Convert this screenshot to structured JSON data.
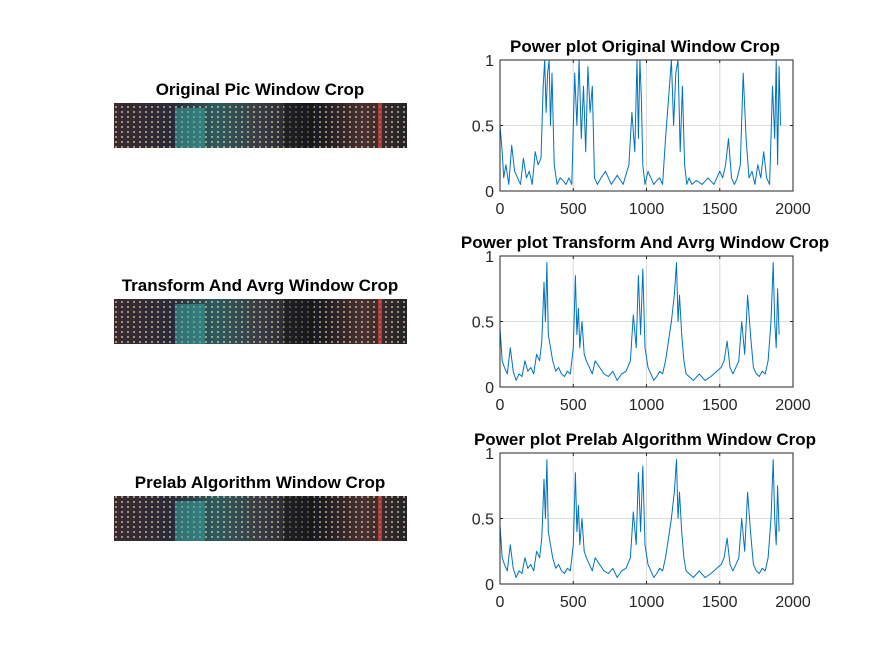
{
  "figure": {
    "image_panels": [
      {
        "title": "Original Pic Window Crop"
      },
      {
        "title": "Transform And Avrg Window Crop"
      },
      {
        "title": "Prelab Algorithm Window Crop"
      }
    ]
  },
  "colors": {
    "line": "#0072BD",
    "axis": "#262626",
    "grid": "#dcdcdc"
  },
  "chart_data": [
    {
      "type": "line",
      "title": "Power plot Original Window Crop",
      "xlabel": "",
      "ylabel": "",
      "xlim": [
        0,
        2000
      ],
      "ylim": [
        0,
        1
      ],
      "xticks": [
        0,
        500,
        1000,
        1500,
        2000
      ],
      "yticks": [
        0,
        0.5,
        1
      ],
      "yticklabels": [
        "0",
        "0.5",
        "1"
      ],
      "grid": true,
      "series": [
        {
          "x": [
            0,
            15,
            25,
            40,
            60,
            80,
            100,
            120,
            140,
            160,
            180,
            200,
            220,
            240,
            260,
            280,
            295,
            305,
            315,
            325,
            335,
            345,
            355,
            370,
            390,
            410,
            430,
            450,
            470,
            490,
            510,
            525,
            540,
            555,
            570,
            585,
            600,
            615,
            630,
            645,
            665,
            690,
            720,
            760,
            800,
            840,
            880,
            900,
            920,
            935,
            945,
            955,
            965,
            975,
            990,
            1010,
            1030,
            1050,
            1070,
            1090,
            1110,
            1130,
            1150,
            1170,
            1185,
            1200,
            1215,
            1230,
            1245,
            1260,
            1275,
            1290,
            1310,
            1340,
            1380,
            1420,
            1460,
            1500,
            1520,
            1540,
            1560,
            1580,
            1600,
            1620,
            1640,
            1660,
            1680,
            1700,
            1720,
            1740,
            1760,
            1780,
            1800,
            1820,
            1840,
            1860,
            1875,
            1885,
            1895,
            1905,
            1915
          ],
          "y": [
            0.5,
            0.3,
            0.1,
            0.2,
            0.05,
            0.35,
            0.15,
            0.1,
            0.05,
            0.25,
            0.1,
            0.15,
            0.05,
            0.3,
            0.2,
            0.25,
            0.8,
            1,
            0.6,
            0.9,
            1,
            0.5,
            0.9,
            0.2,
            0.05,
            0.1,
            0.08,
            0.05,
            0.1,
            0.05,
            0.9,
            0.5,
            1,
            0.4,
            0.8,
            0.3,
            0.95,
            0.6,
            0.8,
            0.1,
            0.05,
            0.1,
            0.15,
            0.05,
            0.12,
            0.05,
            0.2,
            0.6,
            0.3,
            1,
            0.4,
            1,
            0.7,
            0.2,
            0.05,
            0.15,
            0.1,
            0.05,
            0.08,
            0.1,
            0.05,
            0.4,
            0.7,
            1,
            0.5,
            0.9,
            1,
            0.3,
            0.8,
            0.2,
            0.05,
            0.1,
            0.05,
            0.08,
            0.05,
            0.1,
            0.05,
            0.15,
            0.1,
            0.2,
            0.4,
            0.1,
            0.05,
            0.1,
            0.2,
            0.9,
            0.4,
            0.1,
            0.15,
            0.05,
            0.2,
            0.1,
            0.3,
            0.1,
            0.05,
            0.8,
            0.4,
            1,
            0.2,
            0.95,
            0.5
          ]
        }
      ]
    },
    {
      "type": "line",
      "title": "Power plot Transform And Avrg Window Crop",
      "xlabel": "",
      "ylabel": "",
      "xlim": [
        0,
        2000
      ],
      "ylim": [
        0,
        1
      ],
      "xticks": [
        0,
        500,
        1000,
        1500,
        2000
      ],
      "yticks": [
        0,
        0.5,
        1
      ],
      "yticklabels": [
        "0",
        "0.5",
        "1"
      ],
      "grid": true,
      "series": [
        {
          "x": [
            0,
            15,
            30,
            50,
            70,
            90,
            110,
            130,
            150,
            170,
            190,
            210,
            230,
            250,
            270,
            285,
            300,
            310,
            320,
            330,
            345,
            360,
            380,
            400,
            420,
            440,
            460,
            480,
            500,
            515,
            525,
            535,
            545,
            560,
            575,
            590,
            610,
            630,
            650,
            680,
            710,
            740,
            770,
            800,
            830,
            860,
            890,
            910,
            930,
            945,
            960,
            975,
            990,
            1010,
            1030,
            1050,
            1070,
            1090,
            1110,
            1130,
            1150,
            1170,
            1190,
            1205,
            1215,
            1225,
            1240,
            1255,
            1270,
            1290,
            1320,
            1360,
            1400,
            1440,
            1480,
            1510,
            1530,
            1550,
            1570,
            1590,
            1610,
            1630,
            1650,
            1670,
            1690,
            1710,
            1730,
            1750,
            1770,
            1790,
            1810,
            1830,
            1850,
            1865,
            1875,
            1885,
            1895,
            1905
          ],
          "y": [
            0.45,
            0.2,
            0.15,
            0.1,
            0.3,
            0.12,
            0.05,
            0.1,
            0.08,
            0.2,
            0.12,
            0.15,
            0.1,
            0.25,
            0.2,
            0.35,
            0.8,
            0.5,
            0.95,
            0.4,
            0.3,
            0.2,
            0.12,
            0.15,
            0.1,
            0.08,
            0.12,
            0.1,
            0.3,
            0.85,
            0.4,
            0.6,
            0.3,
            0.5,
            0.25,
            0.2,
            0.15,
            0.1,
            0.2,
            0.15,
            0.1,
            0.08,
            0.12,
            0.05,
            0.1,
            0.12,
            0.2,
            0.55,
            0.3,
            0.85,
            0.4,
            0.9,
            0.3,
            0.15,
            0.1,
            0.05,
            0.08,
            0.12,
            0.1,
            0.2,
            0.35,
            0.5,
            0.7,
            0.95,
            0.5,
            0.7,
            0.4,
            0.2,
            0.1,
            0.08,
            0.05,
            0.1,
            0.05,
            0.08,
            0.12,
            0.15,
            0.2,
            0.35,
            0.15,
            0.1,
            0.15,
            0.2,
            0.5,
            0.25,
            0.7,
            0.4,
            0.15,
            0.1,
            0.08,
            0.12,
            0.1,
            0.2,
            0.5,
            0.95,
            0.5,
            0.3,
            0.75,
            0.4
          ]
        }
      ]
    },
    {
      "type": "line",
      "title": "Power plot Prelab Algorithm Window Crop",
      "xlabel": "",
      "ylabel": "",
      "xlim": [
        0,
        2000
      ],
      "ylim": [
        0,
        1
      ],
      "xticks": [
        0,
        500,
        1000,
        1500,
        2000
      ],
      "yticks": [
        0,
        0.5,
        1
      ],
      "yticklabels": [
        "0",
        "0.5",
        "1"
      ],
      "grid": true,
      "series": [
        {
          "x": [
            0,
            15,
            30,
            50,
            70,
            90,
            110,
            130,
            150,
            170,
            190,
            210,
            230,
            250,
            270,
            285,
            300,
            310,
            320,
            330,
            345,
            360,
            380,
            400,
            420,
            440,
            460,
            480,
            500,
            515,
            525,
            535,
            545,
            560,
            575,
            590,
            610,
            630,
            650,
            680,
            710,
            740,
            770,
            800,
            830,
            860,
            890,
            910,
            930,
            945,
            960,
            975,
            990,
            1010,
            1030,
            1050,
            1070,
            1090,
            1110,
            1130,
            1150,
            1170,
            1190,
            1205,
            1215,
            1225,
            1240,
            1255,
            1270,
            1290,
            1320,
            1360,
            1400,
            1440,
            1480,
            1510,
            1530,
            1550,
            1570,
            1590,
            1610,
            1630,
            1650,
            1670,
            1690,
            1710,
            1730,
            1750,
            1770,
            1790,
            1810,
            1830,
            1850,
            1865,
            1875,
            1885,
            1895,
            1905
          ],
          "y": [
            0.45,
            0.2,
            0.15,
            0.1,
            0.3,
            0.12,
            0.05,
            0.1,
            0.08,
            0.2,
            0.12,
            0.15,
            0.1,
            0.25,
            0.2,
            0.35,
            0.8,
            0.5,
            0.95,
            0.4,
            0.3,
            0.2,
            0.12,
            0.15,
            0.1,
            0.08,
            0.12,
            0.1,
            0.3,
            0.85,
            0.4,
            0.6,
            0.3,
            0.5,
            0.25,
            0.2,
            0.15,
            0.1,
            0.2,
            0.15,
            0.1,
            0.08,
            0.12,
            0.05,
            0.1,
            0.12,
            0.2,
            0.55,
            0.3,
            0.85,
            0.4,
            0.9,
            0.3,
            0.15,
            0.1,
            0.05,
            0.08,
            0.12,
            0.1,
            0.2,
            0.35,
            0.5,
            0.7,
            0.95,
            0.5,
            0.7,
            0.4,
            0.2,
            0.1,
            0.08,
            0.05,
            0.1,
            0.05,
            0.08,
            0.12,
            0.15,
            0.2,
            0.35,
            0.15,
            0.1,
            0.15,
            0.2,
            0.5,
            0.25,
            0.7,
            0.4,
            0.15,
            0.1,
            0.08,
            0.12,
            0.1,
            0.2,
            0.5,
            0.95,
            0.5,
            0.3,
            0.75,
            0.4
          ]
        }
      ]
    }
  ]
}
